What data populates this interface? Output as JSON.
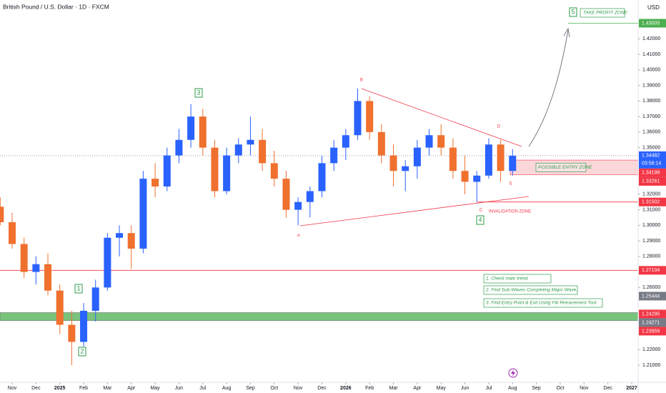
{
  "chart_data": {
    "type": "candlestick",
    "title": "British Pound / U.S. Dollar · 1D · FXCM",
    "currency": "USD",
    "x": [
      -0.5,
      0,
      0.5,
      1,
      1.5,
      2,
      2.5,
      3,
      3.5,
      4,
      4.5,
      5,
      5.5,
      6,
      6.5,
      7,
      7.5,
      8,
      8.5,
      9,
      9.5,
      10,
      10.5,
      11,
      11.5,
      12,
      12.5,
      13,
      13.5,
      14,
      14.5,
      15,
      15.5,
      16,
      16.5,
      17,
      17.5,
      18,
      18.5,
      19,
      19.5,
      20,
      20.5,
      21
    ],
    "open": [
      1.312,
      1.302,
      1.288,
      1.27,
      1.275,
      1.258,
      1.236,
      1.225,
      1.245,
      1.26,
      1.292,
      1.295,
      1.285,
      1.33,
      1.325,
      1.345,
      1.355,
      1.37,
      1.35,
      1.322,
      1.345,
      1.352,
      1.355,
      1.34,
      1.33,
      1.31,
      1.315,
      1.322,
      1.34,
      1.35,
      1.358,
      1.38,
      1.36,
      1.345,
      1.335,
      1.338,
      1.35,
      1.358,
      1.35,
      1.335,
      1.328,
      1.332,
      1.352,
      1.335
    ],
    "high": [
      1.318,
      1.308,
      1.292,
      1.28,
      1.282,
      1.262,
      1.245,
      1.25,
      1.265,
      1.295,
      1.3,
      1.3,
      1.335,
      1.34,
      1.35,
      1.362,
      1.378,
      1.375,
      1.355,
      1.35,
      1.356,
      1.37,
      1.362,
      1.348,
      1.335,
      1.318,
      1.325,
      1.345,
      1.355,
      1.362,
      1.388,
      1.383,
      1.365,
      1.352,
      1.342,
      1.355,
      1.362,
      1.365,
      1.356,
      1.345,
      1.335,
      1.356,
      1.355,
      1.349
    ],
    "low": [
      1.3,
      1.285,
      1.266,
      1.262,
      1.255,
      1.23,
      1.21,
      1.222,
      1.238,
      1.258,
      1.28,
      1.272,
      1.282,
      1.318,
      1.322,
      1.34,
      1.35,
      1.345,
      1.318,
      1.32,
      1.34,
      1.345,
      1.335,
      1.325,
      1.305,
      1.3,
      1.305,
      1.318,
      1.335,
      1.342,
      1.355,
      1.355,
      1.34,
      1.325,
      1.322,
      1.33,
      1.345,
      1.345,
      1.33,
      1.32,
      1.315,
      1.33,
      1.328,
      1.332
    ],
    "close": [
      1.302,
      1.288,
      1.27,
      1.275,
      1.258,
      1.236,
      1.225,
      1.245,
      1.26,
      1.292,
      1.295,
      1.285,
      1.33,
      1.325,
      1.345,
      1.355,
      1.37,
      1.35,
      1.322,
      1.345,
      1.352,
      1.355,
      1.34,
      1.33,
      1.31,
      1.315,
      1.322,
      1.34,
      1.35,
      1.358,
      1.38,
      1.36,
      1.345,
      1.335,
      1.338,
      1.35,
      1.358,
      1.35,
      1.335,
      1.328,
      1.332,
      1.352,
      1.335,
      1.3448
    ],
    "up_color": "#2962ff",
    "down_color": "#f0702e",
    "xlim": [
      -0.51,
      26.27
    ],
    "xticks": [
      {
        "value": 0,
        "label": "Nov"
      },
      {
        "value": 1,
        "label": "Dec"
      },
      {
        "value": 2,
        "label": "2025"
      },
      {
        "value": 3,
        "label": "Feb"
      },
      {
        "value": 4,
        "label": "Mar"
      },
      {
        "value": 5,
        "label": "Apr"
      },
      {
        "value": 6,
        "label": "May"
      },
      {
        "value": 7,
        "label": "Jun"
      },
      {
        "value": 8,
        "label": "Jul"
      },
      {
        "value": 9,
        "label": "Aug"
      },
      {
        "value": 10,
        "label": "Sep"
      },
      {
        "value": 11,
        "label": "Oct"
      },
      {
        "value": 12,
        "label": "Nov"
      },
      {
        "value": 13,
        "label": "Dec"
      },
      {
        "value": 14,
        "label": "2026"
      },
      {
        "value": 15,
        "label": "Feb"
      },
      {
        "value": 16,
        "label": "Mar"
      },
      {
        "value": 17,
        "label": "Apr"
      },
      {
        "value": 18,
        "label": "May"
      },
      {
        "value": 19,
        "label": "Jun"
      },
      {
        "value": 20,
        "label": "Jul"
      },
      {
        "value": 21,
        "label": "Aug"
      },
      {
        "value": 22,
        "label": "Sep"
      },
      {
        "value": 23,
        "label": "Oct"
      },
      {
        "value": 24,
        "label": "Nov"
      },
      {
        "value": 25,
        "label": "Dec"
      },
      {
        "value": 26,
        "label": "2027"
      }
    ],
    "ylim": [
      1.199,
      1.445
    ],
    "yticks": [
      {
        "value": 1.21,
        "label": "1.21000"
      },
      {
        "value": 1.22,
        "label": "1.22000"
      },
      {
        "value": 1.26,
        "label": "1.26000"
      },
      {
        "value": 1.28,
        "label": "1.28000"
      },
      {
        "value": 1.29,
        "label": "1.29000"
      },
      {
        "value": 1.3,
        "label": "1.30000"
      },
      {
        "value": 1.31,
        "label": "1.31000"
      },
      {
        "value": 1.32,
        "label": "1.32000"
      },
      {
        "value": 1.35,
        "label": "1.35000"
      },
      {
        "value": 1.36,
        "label": "1.36000"
      },
      {
        "value": 1.37,
        "label": "1.37000"
      },
      {
        "value": 1.38,
        "label": "1.38000"
      },
      {
        "value": 1.39,
        "label": "1.39000"
      },
      {
        "value": 1.4,
        "label": "1.40000"
      },
      {
        "value": 1.41,
        "label": "1.41000"
      },
      {
        "value": 1.42,
        "label": "1.42000"
      }
    ],
    "countdown": "03:58:14",
    "price_labels": [
      {
        "value": 1.43005,
        "color": "#4caf50",
        "line": "solid"
      },
      {
        "value": 1.34482,
        "color": "#2962ff",
        "line": "dotted"
      },
      {
        "value": 1.34198,
        "color": "#f23645"
      },
      {
        "value": 1.33261,
        "color": "#f23645"
      },
      {
        "value": 1.31502,
        "color": "#f23645",
        "line": "solid"
      },
      {
        "value": 1.27104,
        "color": "#f23645",
        "line": "solid"
      },
      {
        "value": 1.25444,
        "color": "#787b86"
      },
      {
        "value": 1.24295,
        "color": "#f23645"
      },
      {
        "value": 1.24271,
        "color": "#787b86"
      },
      {
        "value": 1.23959,
        "color": "#f23645"
      }
    ],
    "entry_zone": {
      "low": 1.33261,
      "high": 1.34198,
      "label": "POSSIBLE ENTRY ZONE"
    },
    "support_band": {
      "low": 1.23959,
      "high": 1.24295
    },
    "waves": [
      "1",
      "2",
      "3",
      "4",
      "5"
    ],
    "points": [
      "A",
      "B",
      "C",
      "D",
      "E"
    ],
    "invalidation": "INVALIDATION ZONE",
    "take_profit": "TAKE PROFIT ZONE",
    "notes": [
      "1. Check main trend.",
      "2. Find Sub-Waves Completing Major Wave.",
      "3. Find Entry Point & Exit Using Fib Retracement Tool."
    ]
  }
}
